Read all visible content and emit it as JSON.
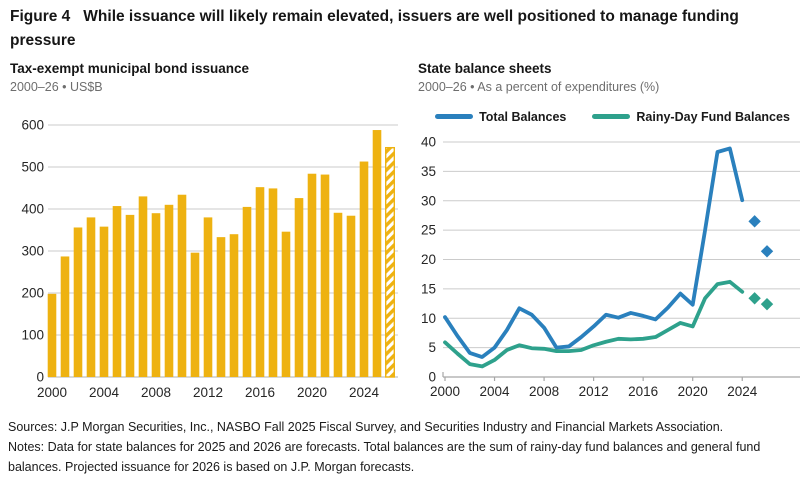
{
  "figure": {
    "label": "Figure 4",
    "title": "While issuance will likely remain elevated, issuers are well positioned to manage funding pressure"
  },
  "colors": {
    "gold": "#EEB211",
    "blue": "#2A80BD",
    "teal": "#2EA18C",
    "grid": "#CBCBCB",
    "axis": "#A6A6A6",
    "tick_text": "#262626",
    "subtitle_text": "#6E6E6E"
  },
  "chart_data": [
    {
      "id": "municipal-issuance",
      "type": "bar",
      "title": "Tax-exempt municipal bond issuance",
      "subtitle": "2000–26 • US$B",
      "ylabel": "US$B",
      "ylim": [
        0,
        600
      ],
      "ytick_step": 100,
      "yticks": [
        0,
        100,
        200,
        300,
        400,
        500,
        600
      ],
      "xticks": [
        2000,
        2004,
        2008,
        2012,
        2016,
        2020,
        2024
      ],
      "years": [
        2000,
        2001,
        2002,
        2003,
        2004,
        2005,
        2006,
        2007,
        2008,
        2009,
        2010,
        2011,
        2012,
        2013,
        2014,
        2015,
        2016,
        2017,
        2018,
        2019,
        2020,
        2021,
        2022,
        2023,
        2024,
        2025,
        2026
      ],
      "values": [
        198,
        287,
        356,
        380,
        358,
        407,
        386,
        430,
        390,
        410,
        434,
        296,
        380,
        333,
        340,
        405,
        452,
        449,
        346,
        426,
        484,
        482,
        391,
        384,
        513,
        588,
        546
      ],
      "forecast_years": [
        2026
      ],
      "forecast_style": "hatched",
      "grid": true
    },
    {
      "id": "state-balances",
      "type": "line",
      "title": "State balance sheets",
      "subtitle": "2000–26 • As a percent of expenditures (%)",
      "ylabel": "Percent of expenditures (%)",
      "ylim": [
        0,
        40
      ],
      "ytick_step": 5,
      "yticks": [
        0,
        5,
        10,
        15,
        20,
        25,
        30,
        35,
        40
      ],
      "xticks": [
        2000,
        2004,
        2008,
        2012,
        2016,
        2020,
        2024
      ],
      "legend_position": "top",
      "grid": true,
      "x": [
        2000,
        2001,
        2002,
        2003,
        2004,
        2005,
        2006,
        2007,
        2008,
        2009,
        2010,
        2011,
        2012,
        2013,
        2014,
        2015,
        2016,
        2017,
        2018,
        2019,
        2020,
        2021,
        2022,
        2023,
        2024
      ],
      "series": [
        {
          "name": "Total Balances",
          "color": "#2A80BD",
          "values": [
            10.2,
            7.0,
            4.1,
            3.4,
            5.0,
            8.0,
            11.7,
            10.6,
            8.4,
            5.0,
            5.2,
            6.8,
            8.6,
            10.6,
            10.1,
            10.9,
            10.4,
            9.8,
            11.8,
            14.2,
            12.3,
            25.0,
            38.3,
            38.9,
            30.1
          ],
          "forecast": {
            "x": [
              2025,
              2026
            ],
            "values": [
              26.5,
              21.4
            ],
            "marker": "diamond"
          }
        },
        {
          "name": "Rainy-Day Fund Balances",
          "color": "#2EA18C",
          "values": [
            5.9,
            4.0,
            2.2,
            1.8,
            2.9,
            4.6,
            5.4,
            4.9,
            4.8,
            4.4,
            4.4,
            4.6,
            5.4,
            6.0,
            6.5,
            6.4,
            6.5,
            6.8,
            8.0,
            9.2,
            8.6,
            13.4,
            15.8,
            16.2,
            14.5
          ],
          "forecast": {
            "x": [
              2025,
              2026
            ],
            "values": [
              13.4,
              12.4
            ],
            "marker": "diamond"
          }
        }
      ]
    }
  ],
  "footer": {
    "sources": "Sources: J.P Morgan Securities, Inc., NASBO Fall 2025 Fiscal Survey, and Securities Industry and Financial Markets Association.",
    "notes": "Notes: Data for state balances for 2025 and 2026 are forecasts. Total balances are the sum of rainy-day fund balances and general fund balances. Projected issuance for 2026 is based on J.P. Morgan forecasts."
  }
}
